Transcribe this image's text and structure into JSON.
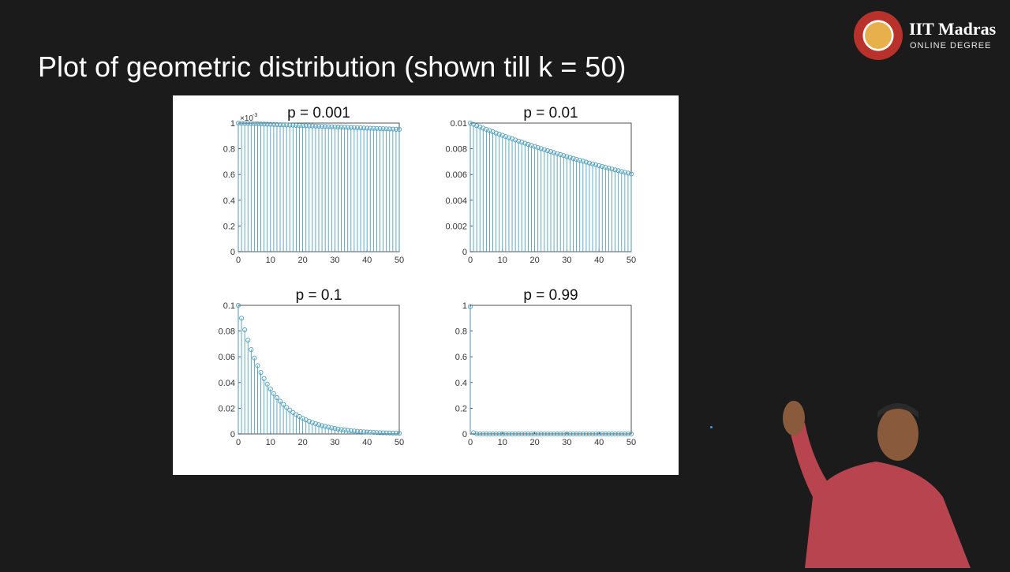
{
  "slide": {
    "title": "Plot of geometric distribution (shown till k = 50)"
  },
  "logo": {
    "name": "IIT Madras",
    "subtitle": "ONLINE DEGREE",
    "seal_text": "INDIAN INSTITUTE OF TECHNOLOGY MADRAS"
  },
  "colors": {
    "background": "#1b1b1b",
    "stem": "#4f9fbf",
    "title_text": "#ffffff",
    "axis": "#262626"
  },
  "chart_data": [
    {
      "type": "stem",
      "title": "p = 0.001",
      "p": 0.001,
      "k": [
        0,
        50
      ],
      "formula": "p*(1-p)^k",
      "xlim": [
        0,
        50
      ],
      "ylim": [
        0,
        0.001
      ],
      "xticks": [
        "0",
        "10",
        "20",
        "30",
        "40",
        "50"
      ],
      "yticks": [
        "0",
        "0.2",
        "0.4",
        "0.6",
        "0.8",
        "1"
      ],
      "exponent_label": "×10",
      "exponent_power": "-3"
    },
    {
      "type": "stem",
      "title": "p = 0.01",
      "p": 0.01,
      "k": [
        0,
        50
      ],
      "formula": "p*(1-p)^k",
      "xlim": [
        0,
        50
      ],
      "ylim": [
        0,
        0.01
      ],
      "xticks": [
        "0",
        "10",
        "20",
        "30",
        "40",
        "50"
      ],
      "yticks": [
        "0",
        "0.002",
        "0.004",
        "0.006",
        "0.008",
        "0.01"
      ]
    },
    {
      "type": "stem",
      "title": "p = 0.1",
      "p": 0.1,
      "k": [
        0,
        50
      ],
      "formula": "p*(1-p)^k",
      "xlim": [
        0,
        50
      ],
      "ylim": [
        0,
        0.1
      ],
      "xticks": [
        "0",
        "10",
        "20",
        "30",
        "40",
        "50"
      ],
      "yticks": [
        "0",
        "0.02",
        "0.04",
        "0.06",
        "0.08",
        "0.1"
      ]
    },
    {
      "type": "stem",
      "title": "p = 0.99",
      "p": 0.99,
      "k": [
        0,
        50
      ],
      "formula": "p*(1-p)^k",
      "xlim": [
        0,
        50
      ],
      "ylim": [
        0,
        1
      ],
      "xticks": [
        "0",
        "10",
        "20",
        "30",
        "40",
        "50"
      ],
      "yticks": [
        "0",
        "0.2",
        "0.4",
        "0.6",
        "0.8",
        "1"
      ]
    }
  ]
}
